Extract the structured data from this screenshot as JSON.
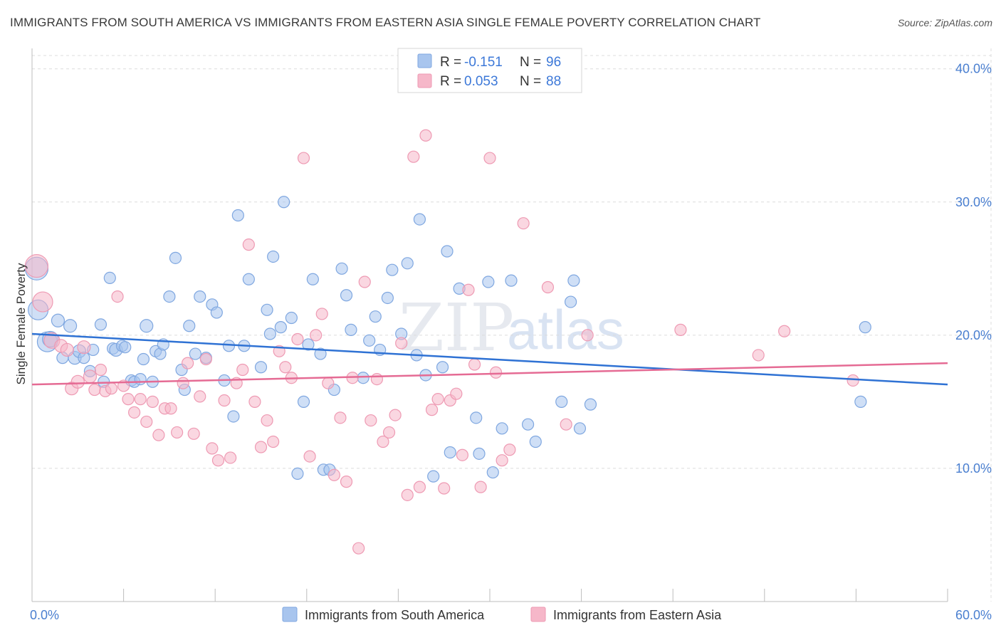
{
  "header": {
    "title": "IMMIGRANTS FROM SOUTH AMERICA VS IMMIGRANTS FROM EASTERN ASIA SINGLE FEMALE POVERTY CORRELATION CHART",
    "source": "Source: ZipAtlas.com"
  },
  "watermark": {
    "zip": "ZIP",
    "atlas": "atlas"
  },
  "legend": {
    "r_label": "R =",
    "n_label": "N =",
    "series1_r": "-0.151",
    "series1_n": "96",
    "series2_r": "0.053",
    "series2_n": "88"
  },
  "colors": {
    "blue_fill": "#a8c5ee",
    "blue_stroke": "#7fa7e0",
    "blue_line": "#2f72d4",
    "pink_fill": "#f6b7c9",
    "pink_stroke": "#ee9ab3",
    "pink_line": "#e56b94",
    "tick_text": "#4a7fd0"
  },
  "chart_data": {
    "type": "scatter",
    "title": "IMMIGRANTS FROM SOUTH AMERICA VS IMMIGRANTS FROM EASTERN ASIA SINGLE FEMALE POVERTY CORRELATION CHART",
    "xlabel": "",
    "ylabel": "Single Female Poverty",
    "xlim": [
      0,
      60
    ],
    "ylim": [
      0,
      41
    ],
    "x_tick_labels": [
      "0.0%",
      "60.0%"
    ],
    "y_ticks": [
      10,
      20,
      30,
      40
    ],
    "y_tick_labels": [
      "10.0%",
      "20.0%",
      "30.0%",
      "40.0%"
    ],
    "grid": true,
    "legend_position": "top-center",
    "series": [
      {
        "name": "Immigrants from South America",
        "color": "blue",
        "R": -0.151,
        "N": 96,
        "trend": {
          "x": [
            0,
            60
          ],
          "y": [
            20.1,
            16.3
          ]
        },
        "points": [
          [
            0.3,
            25.0,
            16
          ],
          [
            0.4,
            21.9,
            14
          ],
          [
            1.0,
            19.5,
            14
          ],
          [
            1.2,
            19.7,
            11
          ],
          [
            1.7,
            21.1,
            9
          ],
          [
            2.0,
            18.3,
            8
          ],
          [
            2.5,
            20.7,
            9
          ],
          [
            2.8,
            18.3,
            9
          ],
          [
            3.1,
            18.8,
            9
          ],
          [
            3.4,
            18.3,
            8
          ],
          [
            3.8,
            17.3,
            8
          ],
          [
            4.0,
            18.9,
            8
          ],
          [
            4.5,
            20.8,
            8
          ],
          [
            4.7,
            16.5,
            8
          ],
          [
            5.1,
            24.3,
            8
          ],
          [
            5.3,
            19.0,
            8
          ],
          [
            5.5,
            18.9,
            9
          ],
          [
            5.9,
            19.2,
            8
          ],
          [
            6.1,
            19.1,
            8
          ],
          [
            6.5,
            16.6,
            8
          ],
          [
            6.7,
            16.5,
            8
          ],
          [
            7.1,
            16.7,
            8
          ],
          [
            7.3,
            18.2,
            8
          ],
          [
            7.5,
            20.7,
            9
          ],
          [
            7.9,
            16.5,
            8
          ],
          [
            8.1,
            18.8,
            8
          ],
          [
            8.4,
            18.6,
            8
          ],
          [
            8.6,
            19.3,
            8
          ],
          [
            9.0,
            22.9,
            8
          ],
          [
            9.4,
            25.8,
            8
          ],
          [
            9.8,
            17.4,
            8
          ],
          [
            10.0,
            15.9,
            8
          ],
          [
            10.3,
            20.7,
            8
          ],
          [
            10.7,
            18.6,
            8
          ],
          [
            11.0,
            22.9,
            8
          ],
          [
            11.4,
            18.3,
            8
          ],
          [
            11.8,
            22.3,
            8
          ],
          [
            12.1,
            21.7,
            8
          ],
          [
            12.6,
            16.6,
            8
          ],
          [
            12.9,
            19.2,
            8
          ],
          [
            13.2,
            13.9,
            8
          ],
          [
            13.5,
            29.0,
            8
          ],
          [
            13.9,
            19.2,
            8
          ],
          [
            14.2,
            24.2,
            8
          ],
          [
            15.0,
            17.6,
            8
          ],
          [
            15.4,
            21.9,
            8
          ],
          [
            15.6,
            20.1,
            8
          ],
          [
            15.8,
            25.9,
            8
          ],
          [
            16.3,
            20.6,
            8
          ],
          [
            16.5,
            30.0,
            8
          ],
          [
            17.0,
            21.3,
            8
          ],
          [
            17.4,
            9.6,
            8
          ],
          [
            17.8,
            15.0,
            8
          ],
          [
            18.1,
            19.3,
            8
          ],
          [
            18.4,
            24.2,
            8
          ],
          [
            18.9,
            18.6,
            8
          ],
          [
            19.1,
            9.9,
            8
          ],
          [
            19.5,
            9.9,
            8
          ],
          [
            19.8,
            15.9,
            8
          ],
          [
            20.3,
            25.0,
            8
          ],
          [
            20.6,
            23.0,
            8
          ],
          [
            20.9,
            20.4,
            8
          ],
          [
            21.7,
            16.8,
            8
          ],
          [
            22.1,
            19.6,
            8
          ],
          [
            22.5,
            21.4,
            8
          ],
          [
            22.8,
            18.9,
            8
          ],
          [
            23.3,
            22.8,
            8
          ],
          [
            23.6,
            24.9,
            8
          ],
          [
            24.2,
            20.1,
            8
          ],
          [
            24.6,
            25.4,
            8
          ],
          [
            25.2,
            18.5,
            8
          ],
          [
            25.4,
            28.7,
            8
          ],
          [
            25.8,
            17.0,
            8
          ],
          [
            26.3,
            9.4,
            8
          ],
          [
            26.9,
            17.6,
            8
          ],
          [
            27.2,
            26.3,
            8
          ],
          [
            27.4,
            11.2,
            8
          ],
          [
            28.0,
            23.5,
            8
          ],
          [
            29.1,
            13.8,
            8
          ],
          [
            29.3,
            11.1,
            8
          ],
          [
            29.9,
            24.0,
            8
          ],
          [
            30.2,
            9.7,
            8
          ],
          [
            30.8,
            13.0,
            8
          ],
          [
            31.4,
            24.1,
            8
          ],
          [
            32.5,
            13.3,
            8
          ],
          [
            33.0,
            12.0,
            8
          ],
          [
            34.7,
            15.0,
            8
          ],
          [
            35.3,
            22.5,
            8
          ],
          [
            35.5,
            24.1,
            8
          ],
          [
            35.9,
            13.0,
            8
          ],
          [
            36.6,
            14.8,
            8
          ],
          [
            54.3,
            15.0,
            8
          ],
          [
            54.6,
            20.6,
            8
          ]
        ]
      },
      {
        "name": "Immigrants from Eastern Asia",
        "color": "pink",
        "R": 0.053,
        "N": 88,
        "trend": {
          "x": [
            0,
            60
          ],
          "y": [
            16.3,
            17.9
          ]
        },
        "points": [
          [
            0.3,
            25.2,
            16
          ],
          [
            0.7,
            22.5,
            14
          ],
          [
            1.3,
            19.6,
            11
          ],
          [
            1.9,
            19.2,
            9
          ],
          [
            2.3,
            18.9,
            9
          ],
          [
            2.6,
            16.0,
            9
          ],
          [
            3.0,
            16.5,
            9
          ],
          [
            3.4,
            19.1,
            9
          ],
          [
            3.8,
            16.9,
            9
          ],
          [
            4.1,
            15.9,
            8
          ],
          [
            4.5,
            17.4,
            8
          ],
          [
            4.8,
            15.8,
            8
          ],
          [
            5.2,
            16.0,
            8
          ],
          [
            5.6,
            22.9,
            8
          ],
          [
            6.0,
            16.2,
            8
          ],
          [
            6.3,
            15.2,
            8
          ],
          [
            6.7,
            14.2,
            8
          ],
          [
            7.1,
            15.2,
            8
          ],
          [
            7.5,
            13.5,
            8
          ],
          [
            7.9,
            15.0,
            8
          ],
          [
            8.3,
            12.5,
            8
          ],
          [
            8.7,
            14.5,
            8
          ],
          [
            9.1,
            14.5,
            8
          ],
          [
            9.5,
            12.7,
            8
          ],
          [
            9.9,
            16.4,
            8
          ],
          [
            10.2,
            17.9,
            8
          ],
          [
            10.6,
            12.6,
            8
          ],
          [
            11.0,
            15.4,
            8
          ],
          [
            11.4,
            18.2,
            8
          ],
          [
            11.8,
            11.5,
            8
          ],
          [
            12.2,
            10.6,
            8
          ],
          [
            12.6,
            15.1,
            8
          ],
          [
            13.0,
            10.8,
            8
          ],
          [
            13.4,
            16.4,
            8
          ],
          [
            13.8,
            17.4,
            8
          ],
          [
            14.2,
            26.8,
            8
          ],
          [
            14.6,
            15.0,
            8
          ],
          [
            15.0,
            11.6,
            8
          ],
          [
            15.4,
            13.6,
            8
          ],
          [
            15.8,
            12.0,
            8
          ],
          [
            16.2,
            18.8,
            8
          ],
          [
            16.6,
            17.6,
            8
          ],
          [
            17.0,
            16.8,
            8
          ],
          [
            17.4,
            19.7,
            8
          ],
          [
            17.8,
            33.3,
            8
          ],
          [
            18.2,
            10.9,
            8
          ],
          [
            18.6,
            20.0,
            8
          ],
          [
            19.0,
            21.6,
            8
          ],
          [
            19.4,
            16.4,
            8
          ],
          [
            19.8,
            9.5,
            8
          ],
          [
            20.2,
            13.8,
            8
          ],
          [
            20.6,
            9.0,
            8
          ],
          [
            21.0,
            16.8,
            8
          ],
          [
            21.4,
            4.0,
            8
          ],
          [
            21.8,
            24.0,
            8
          ],
          [
            22.2,
            13.6,
            8
          ],
          [
            22.6,
            16.7,
            8
          ],
          [
            23.0,
            12.0,
            8
          ],
          [
            23.4,
            12.7,
            8
          ],
          [
            23.8,
            14.0,
            8
          ],
          [
            24.2,
            19.4,
            8
          ],
          [
            24.6,
            8.0,
            8
          ],
          [
            25.0,
            33.4,
            8
          ],
          [
            25.4,
            8.6,
            8
          ],
          [
            25.8,
            35.0,
            8
          ],
          [
            26.2,
            14.4,
            8
          ],
          [
            26.6,
            15.2,
            8
          ],
          [
            27.0,
            8.5,
            8
          ],
          [
            27.4,
            15.1,
            8
          ],
          [
            27.8,
            15.6,
            8
          ],
          [
            28.2,
            11.0,
            8
          ],
          [
            28.6,
            23.4,
            8
          ],
          [
            29.0,
            17.8,
            8
          ],
          [
            29.4,
            8.6,
            8
          ],
          [
            30.0,
            33.3,
            8
          ],
          [
            30.4,
            17.2,
            8
          ],
          [
            30.8,
            10.6,
            8
          ],
          [
            31.3,
            11.4,
            8
          ],
          [
            32.2,
            28.4,
            8
          ],
          [
            33.8,
            23.6,
            8
          ],
          [
            35.0,
            13.3,
            8
          ],
          [
            36.4,
            20.0,
            8
          ],
          [
            42.5,
            20.4,
            8
          ],
          [
            47.6,
            18.5,
            8
          ],
          [
            49.3,
            20.3,
            8
          ],
          [
            53.8,
            16.6,
            8
          ]
        ]
      }
    ]
  },
  "bottom_legend": {
    "series1": "Immigrants from South America",
    "series2": "Immigrants from Eastern Asia"
  }
}
